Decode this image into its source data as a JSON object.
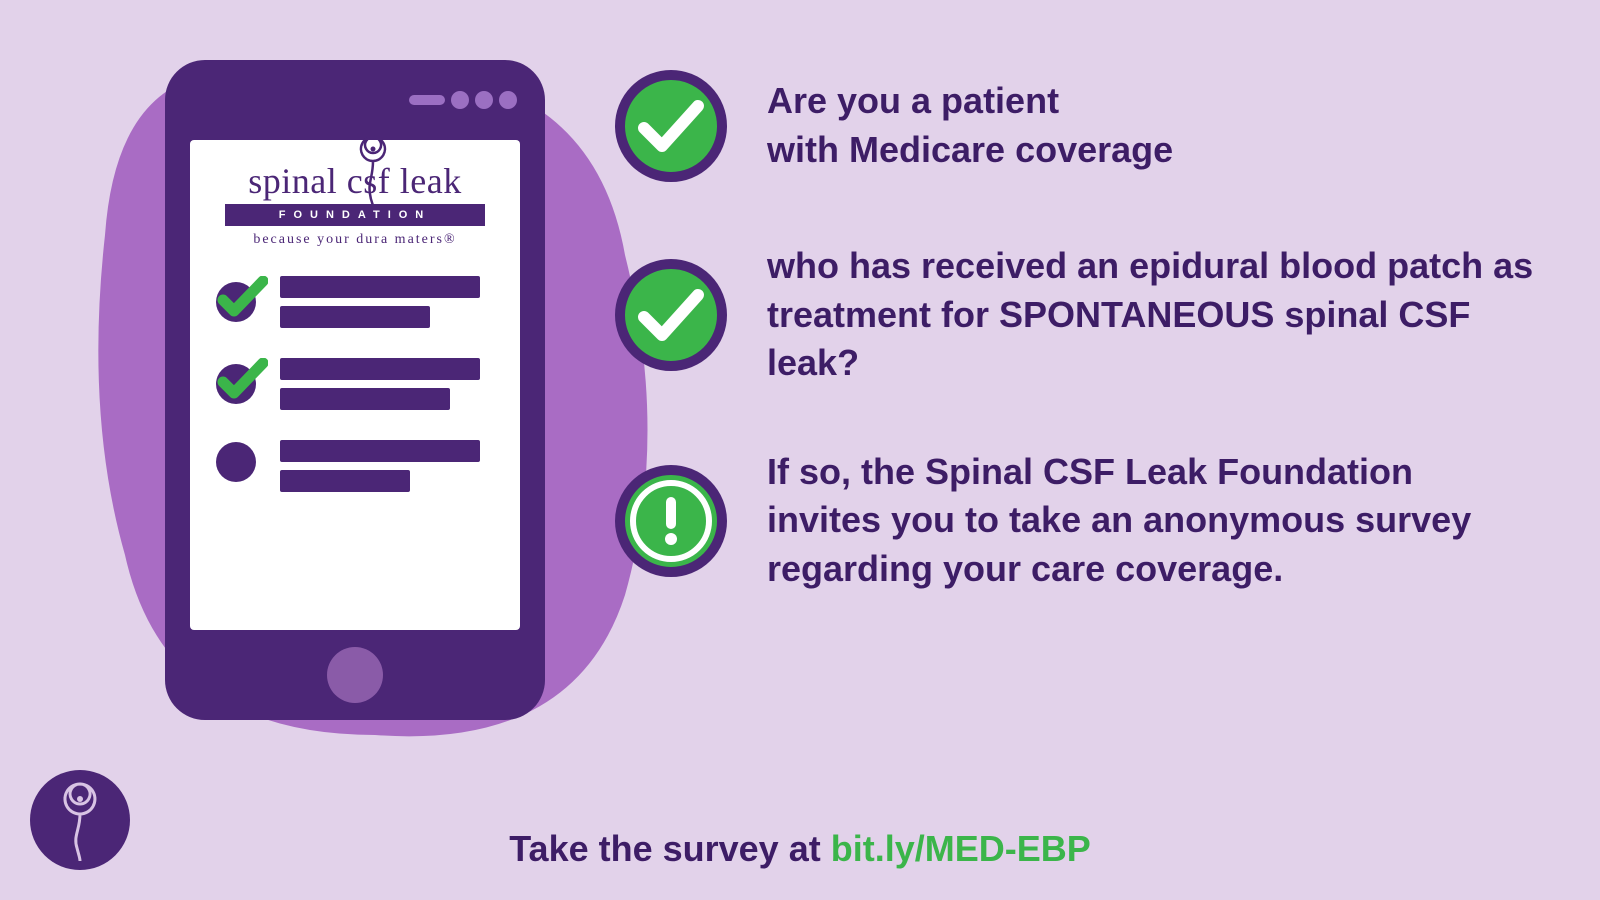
{
  "colors": {
    "background": "#e2d2ea",
    "blob": "#a96cc4",
    "phone_body": "#4b2676",
    "phone_speaker": "#9b6fc2",
    "screen_bg": "#ffffff",
    "dark_purple": "#4b2676",
    "text_purple": "#3d1d66",
    "green": "#3bb54a",
    "green_light": "#58c768",
    "home_btn": "#8a5ba8",
    "corner_bg": "#4b2676",
    "corner_swirl": "#d8c3e4"
  },
  "logo": {
    "name": "spinal csf leak",
    "foundation_label": "FOUNDATION",
    "tagline": "because your dura maters®"
  },
  "phone_checklist": {
    "rows": [
      {
        "checked": true,
        "bar1_width": 200,
        "bar2_width": 150
      },
      {
        "checked": true,
        "bar1_width": 200,
        "bar2_width": 170
      },
      {
        "checked": false,
        "bar1_width": 200,
        "bar2_width": 130
      }
    ]
  },
  "items": [
    {
      "icon": "check",
      "text": "Are you a patient\nwith Medicare coverage"
    },
    {
      "icon": "check",
      "text": "who has received an epidural blood patch as treatment for SPONTANEOUS spinal CSF leak?"
    },
    {
      "icon": "exclaim",
      "text": "If so, the Spinal CSF Leak Foundation invites you to take an anonymous survey regarding your care coverage."
    }
  ],
  "cta": {
    "prefix": "Take the survey at ",
    "link": "bit.ly/MED-EBP"
  },
  "typography": {
    "item_fontsize": 36,
    "item_fontweight": 800,
    "cta_fontsize": 36
  }
}
